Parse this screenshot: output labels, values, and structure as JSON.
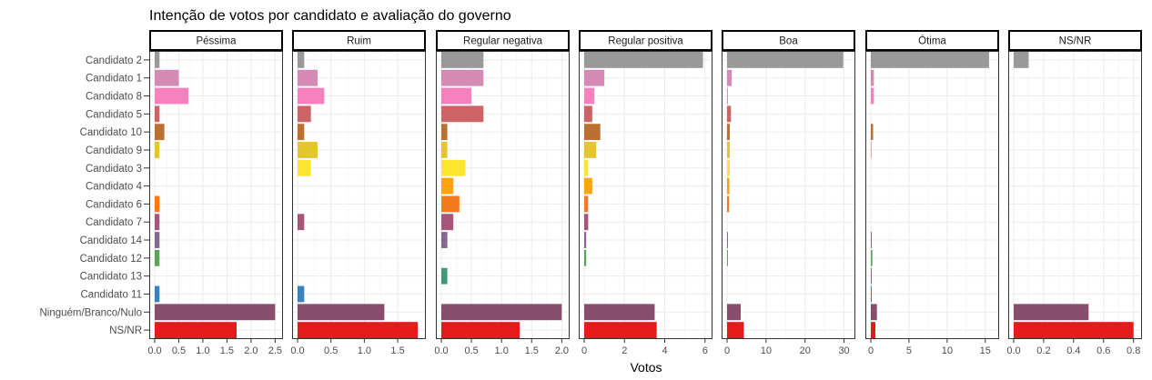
{
  "chart_data": {
    "type": "bar",
    "orientation": "horizontal",
    "title": "Intenção de votos por candidato e avaliação do governo",
    "xlabel": "Votos",
    "ylabel": "",
    "grid": true,
    "legend": "none",
    "categories": [
      "Candidato 2",
      "Candidato 1",
      "Candidato 8",
      "Candidato 5",
      "Candidato 10",
      "Candidato 9",
      "Candidato 3",
      "Candidato 4",
      "Candidato 6",
      "Candidato 7",
      "Candidato 14",
      "Candidato 12",
      "Candidato 13",
      "Candidato 11",
      "Ninguém/Branco/Nulo",
      "NS/NR"
    ],
    "category_colors": [
      "#999999",
      "#d58ab4",
      "#f781bf",
      "#cd6366",
      "#bb6f31",
      "#e4c42f",
      "#fde52f",
      "#ffa30f",
      "#f27b22",
      "#a5567a",
      "#86678f",
      "#5aa55a",
      "#3f9976",
      "#3a82bd",
      "#8a4e6d",
      "#e41a1c"
    ],
    "panels": [
      {
        "name": "Péssima",
        "xlim": [
          0,
          2.55
        ],
        "ticks": [
          0,
          0.5,
          1.0,
          1.5,
          2.0,
          2.5
        ],
        "tick_labels": [
          "0.0",
          "0.5",
          "1.0",
          "1.5",
          "2.0",
          "2.5"
        ],
        "values": [
          0.1,
          0.5,
          0.7,
          0.1,
          0.2,
          0.1,
          0,
          0,
          0.1,
          0.1,
          0.1,
          0.1,
          0,
          0.1,
          2.5,
          1.7
        ]
      },
      {
        "name": "Ruim",
        "xlim": [
          0,
          1.84
        ],
        "ticks": [
          0,
          0.5,
          1.0,
          1.5
        ],
        "tick_labels": [
          "0.0",
          "0.5",
          "1.0",
          "1.5"
        ],
        "values": [
          0.1,
          0.3,
          0.4,
          0.2,
          0.1,
          0.3,
          0.2,
          0,
          0,
          0.1,
          0,
          0,
          0,
          0.1,
          1.3,
          1.8
        ]
      },
      {
        "name": "Regular negativa",
        "xlim": [
          0,
          2.04
        ],
        "ticks": [
          0,
          0.5,
          1.0,
          1.5,
          2.0
        ],
        "tick_labels": [
          "0.0",
          "0.5",
          "1.0",
          "1.5",
          "2.0"
        ],
        "values": [
          0.7,
          0.7,
          0.5,
          0.7,
          0.1,
          0.1,
          0.4,
          0.2,
          0.3,
          0.2,
          0.1,
          0,
          0.1,
          0,
          2.0,
          1.3
        ]
      },
      {
        "name": "Regular positiva",
        "xlim": [
          0,
          6.1
        ],
        "ticks": [
          0,
          2,
          4,
          6
        ],
        "tick_labels": [
          "0",
          "2",
          "4",
          "6"
        ],
        "values": [
          5.9,
          1.0,
          0.5,
          0.4,
          0.8,
          0.6,
          0.2,
          0.4,
          0.2,
          0.2,
          0.1,
          0.1,
          0,
          0,
          3.5,
          3.6
        ]
      },
      {
        "name": "Boa",
        "xlim": [
          0,
          31.5
        ],
        "ticks": [
          0,
          10,
          20,
          30
        ],
        "tick_labels": [
          "0",
          "10",
          "20",
          "30"
        ],
        "values": [
          29.8,
          1.2,
          0.2,
          1.0,
          0.7,
          0.7,
          0.7,
          0.6,
          0.5,
          0,
          0.1,
          0.1,
          0,
          0,
          3.5,
          4.3
        ]
      },
      {
        "name": "Ótima",
        "xlim": [
          0,
          16.1
        ],
        "ticks": [
          0,
          5,
          10,
          15
        ],
        "tick_labels": [
          "0",
          "5",
          "10",
          "15"
        ],
        "values": [
          15.5,
          0.4,
          0.4,
          0,
          0.3,
          0.1,
          0,
          0,
          0,
          0,
          0.1,
          0.2,
          0.1,
          0.1,
          0.8,
          0.6
        ]
      },
      {
        "name": "NS/NR",
        "xlim": [
          0,
          0.82
        ],
        "ticks": [
          0,
          0.2,
          0.4,
          0.6,
          0.8
        ],
        "tick_labels": [
          "0.0",
          "0.2",
          "0.4",
          "0.6",
          "0.8"
        ],
        "values": [
          0.1,
          0,
          0,
          0,
          0,
          0,
          0,
          0,
          0,
          0,
          0,
          0,
          0,
          0,
          0.5,
          0.8
        ]
      }
    ]
  }
}
